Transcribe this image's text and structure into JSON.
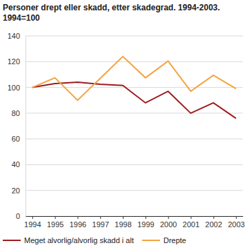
{
  "chart_data": {
    "type": "line",
    "title": "Personer drept eller skadd, etter skadegrad. 1994-2003.",
    "subtitle": "1994=100",
    "categories": [
      "1994",
      "1995",
      "1996",
      "1997",
      "1998",
      "1999",
      "2000",
      "2001",
      "2002",
      "2003"
    ],
    "series": [
      {
        "name": "Meget alvorlig/alvorlig skadd i alt",
        "color": "#9e1b1e",
        "values": [
          100,
          103,
          104,
          102.5,
          101.5,
          88,
          97,
          80,
          88,
          76
        ]
      },
      {
        "name": "Drepte",
        "color": "#f4a340",
        "values": [
          100,
          107.5,
          90,
          107,
          124,
          107.5,
          120.5,
          97,
          109.5,
          99
        ]
      }
    ],
    "ylim": [
      0,
      140
    ],
    "yticks": [
      0,
      20,
      40,
      60,
      80,
      100,
      120,
      140
    ],
    "grid": true,
    "legend": "bottom"
  }
}
